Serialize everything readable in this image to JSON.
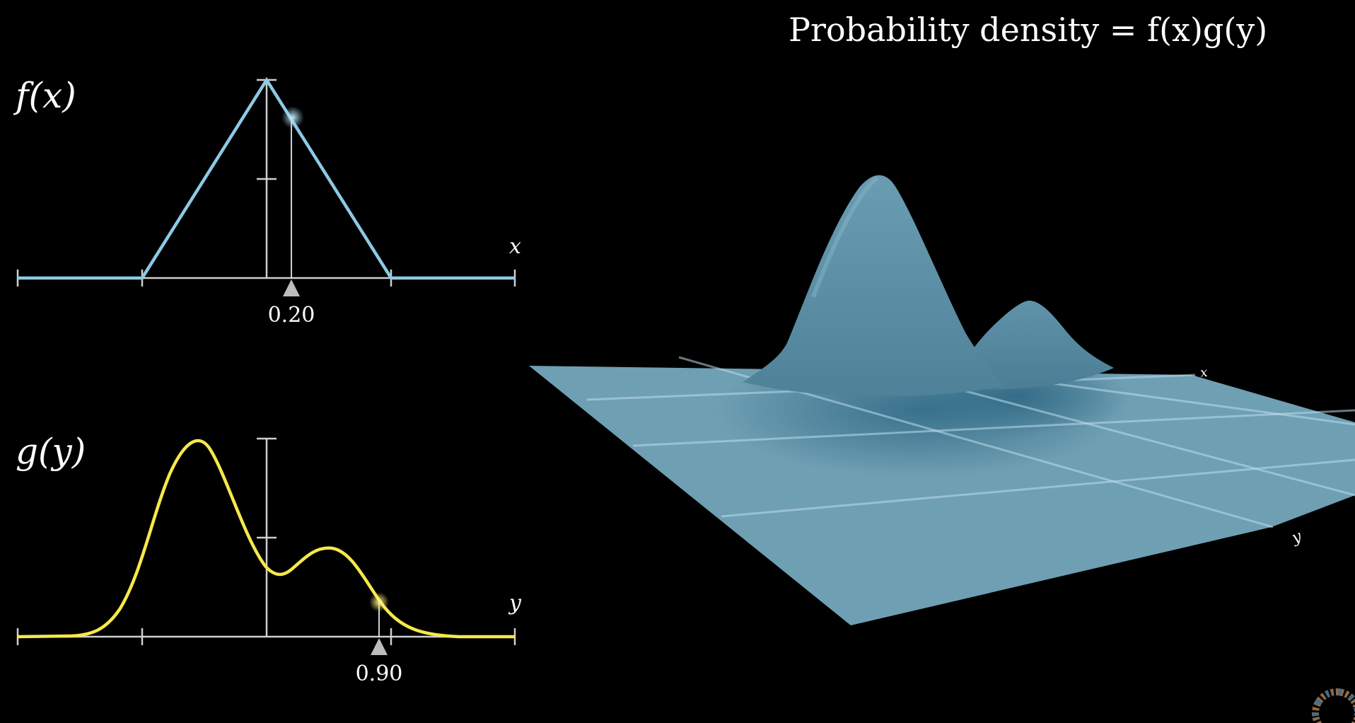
{
  "title": {
    "text": "Probability density = f(x)g(y)"
  },
  "colors": {
    "background": "#000000",
    "f_curve": "#8ec9e6",
    "g_curve": "#f6e94a",
    "axis": "#cfcfcf",
    "surface": "#6f9fb3",
    "surface_dark": "#3f7690",
    "marker": "#bdbdbd"
  },
  "f_plot": {
    "label": "f(x)",
    "axis_label": "x",
    "marker_value_label": "0.20",
    "marker_value": 0.2,
    "chart_data": {
      "type": "line",
      "description": "triangular density",
      "x": [
        -2,
        -1,
        0,
        1,
        2
      ],
      "y": [
        0,
        0,
        1,
        0,
        0
      ],
      "xlim": [
        -2,
        2
      ],
      "ylim": [
        0,
        1
      ]
    }
  },
  "g_plot": {
    "label": "g(y)",
    "axis_label": "y",
    "marker_value_label": "0.90",
    "marker_value": 0.9
  },
  "surface": {
    "axis_label_x": "x",
    "axis_label_y": "y"
  }
}
